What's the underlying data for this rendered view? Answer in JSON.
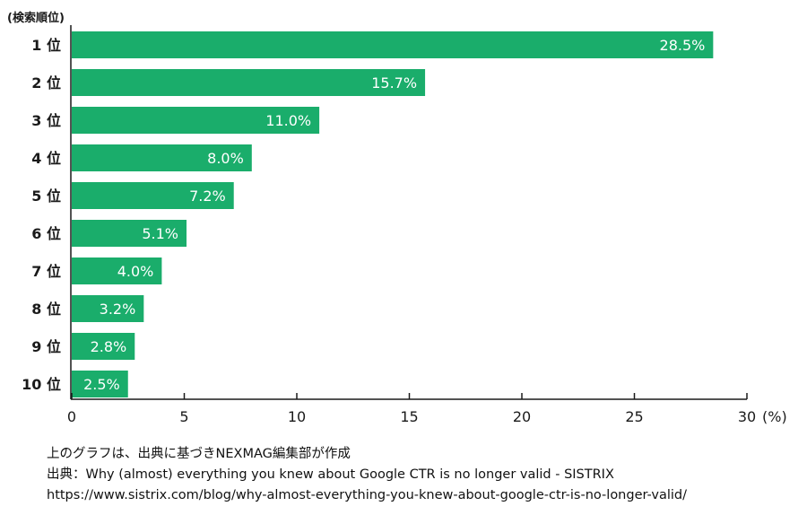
{
  "chart_data": {
    "type": "bar",
    "orientation": "horizontal",
    "categories": [
      "1 位",
      "2 位",
      "3 位",
      "4 位",
      "5 位",
      "6 位",
      "7 位",
      "8 位",
      "9 位",
      "10 位"
    ],
    "values": [
      28.5,
      15.7,
      11.0,
      8.0,
      7.2,
      5.1,
      4.0,
      3.2,
      2.8,
      2.5
    ],
    "value_labels": [
      "28.5%",
      "15.7%",
      "11.0%",
      "8.0%",
      "7.2%",
      "5.1%",
      "4.0%",
      "3.2%",
      "2.8%",
      "2.5%"
    ],
    "ylabel": "(検索順位)",
    "xlabel": "(%)",
    "xlim": [
      0,
      30
    ],
    "xticks": [
      0,
      5,
      10,
      15,
      20,
      25,
      30
    ],
    "bar_color": "#1aad6b",
    "grid": false
  },
  "footnotes": {
    "line1": "上のグラフは、出典に基づきNEXMAG編集部が作成",
    "line2": "出典：Why (almost) everything you knew about Google CTR is no longer valid - SISTRIX",
    "line3": "https://www.sistrix.com/blog/why-almost-everything-you-knew-about-google-ctr-is-no-longer-valid/"
  }
}
